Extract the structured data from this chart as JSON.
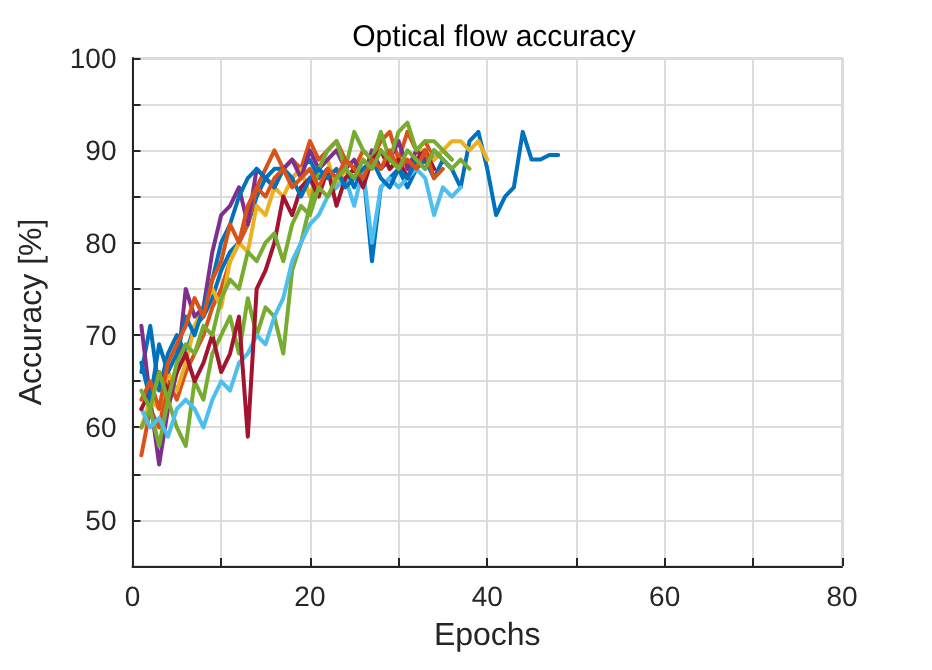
{
  "chart_data": {
    "type": "line",
    "title": "Optical flow accuracy",
    "xlabel": "Epochs",
    "ylabel": "Accuracy [%]",
    "xlim": [
      0,
      80
    ],
    "xticks": [
      0,
      {
        "value": 10,
        "label": null
      },
      20,
      {
        "value": 30,
        "label": null
      },
      40,
      {
        "value": 50,
        "label": null
      },
      60,
      {
        "value": 70,
        "label": null
      },
      80
    ],
    "ylim": [
      45,
      100
    ],
    "yticks": [
      {
        "value": 45,
        "label": null
      },
      50,
      {
        "value": 55,
        "label": null
      },
      60,
      {
        "value": 65,
        "label": null
      },
      70,
      {
        "value": 75,
        "label": null
      },
      80,
      {
        "value": 85,
        "label": null
      },
      90,
      {
        "value": 95,
        "label": null
      },
      100
    ],
    "grid": true,
    "marker": "none",
    "line_style": "solid",
    "series": [
      {
        "color": "#0072bd",
        "x": [
          1,
          2,
          3,
          4,
          5,
          6,
          7,
          8,
          9,
          10,
          11,
          12,
          13,
          14,
          15,
          16,
          17,
          18,
          19,
          20,
          21,
          22,
          23,
          24,
          25,
          26,
          27,
          28,
          29,
          30,
          31,
          32,
          33,
          34,
          35,
          36,
          37,
          38,
          39,
          40,
          41,
          42,
          43,
          44,
          45,
          46,
          47,
          48
        ],
        "values": [
          66,
          71,
          64,
          68,
          70,
          68,
          71,
          72,
          74,
          77,
          79,
          80,
          82,
          85,
          87,
          88,
          88,
          87,
          88,
          89,
          87,
          88,
          87,
          88,
          86,
          88,
          78,
          86,
          87,
          88,
          86,
          88,
          89,
          87,
          89,
          88,
          86,
          91,
          92,
          88,
          83,
          85,
          86,
          92,
          89,
          89,
          89.5,
          89.5
        ]
      },
      {
        "color": "#d95319",
        "x": [
          1,
          2,
          3,
          4,
          5,
          6,
          7,
          8,
          9,
          10,
          11,
          12,
          13,
          14,
          15,
          16,
          17,
          18,
          19,
          20,
          21,
          22,
          23,
          24,
          25,
          26,
          27,
          28,
          29,
          30,
          31,
          32,
          33,
          34,
          35,
          36
        ],
        "values": [
          57,
          62,
          60,
          65,
          63,
          66,
          68,
          70,
          73,
          75,
          78,
          80,
          82,
          86,
          88,
          90,
          88,
          89,
          88,
          91,
          89,
          90,
          91,
          89,
          88,
          90,
          89,
          91,
          92,
          89,
          92,
          90,
          91,
          89,
          90,
          89
        ]
      },
      {
        "color": "#edb120",
        "x": [
          1,
          2,
          3,
          4,
          5,
          6,
          7,
          8,
          9,
          10,
          11,
          12,
          13,
          14,
          15,
          16,
          17,
          18,
          19,
          20,
          21,
          22,
          23,
          24,
          25,
          26,
          27,
          28,
          29,
          30,
          31,
          32,
          33,
          34,
          35,
          36,
          37,
          38,
          39,
          40
        ],
        "values": [
          60,
          63,
          62,
          66,
          64,
          67,
          71,
          73,
          75,
          73,
          78,
          80,
          79,
          84,
          83,
          86,
          85,
          87,
          88,
          85,
          88,
          89,
          86,
          88,
          87,
          89,
          88,
          90,
          88,
          89,
          87,
          90,
          90,
          89,
          90,
          91,
          91,
          90,
          91,
          89
        ]
      },
      {
        "color": "#7e2f8e",
        "x": [
          1,
          2,
          3,
          4,
          5,
          6,
          7,
          8,
          9,
          10,
          11,
          12,
          13,
          14,
          15,
          16,
          17,
          18,
          19,
          20,
          21,
          22,
          23,
          24,
          25,
          26,
          27,
          28,
          29,
          30,
          31,
          32,
          33,
          34
        ],
        "values": [
          71,
          63,
          56,
          62,
          66,
          75,
          72,
          73,
          79,
          83,
          84,
          86,
          82,
          88,
          87,
          86,
          88,
          89,
          87,
          90,
          88,
          89,
          90,
          88,
          89,
          87,
          90,
          88,
          89,
          91,
          88,
          90,
          89,
          88
        ]
      },
      {
        "color": "#77ac30",
        "x": [
          1,
          2,
          3,
          4,
          5,
          6,
          7,
          8,
          9,
          10,
          11,
          12,
          13,
          14,
          15,
          16,
          17,
          18,
          19,
          20,
          21,
          22,
          23,
          24,
          25,
          26,
          27,
          28,
          29,
          30,
          31,
          32,
          33,
          34,
          35,
          36
        ],
        "values": [
          60,
          62,
          58,
          63,
          60,
          58,
          65,
          63,
          68,
          70,
          72,
          68,
          74,
          70,
          73,
          72,
          68,
          77,
          80,
          84,
          88,
          90,
          91,
          88,
          92,
          90,
          89,
          92,
          89,
          92,
          93,
          90,
          91,
          91,
          90,
          89
        ]
      },
      {
        "color": "#4dbeee",
        "x": [
          1,
          2,
          3,
          4,
          5,
          6,
          7,
          8,
          9,
          10,
          11,
          12,
          13,
          14,
          15,
          16,
          17,
          18,
          19,
          20,
          21,
          22,
          23,
          24,
          25,
          26,
          27,
          28,
          29,
          30,
          31,
          32,
          33,
          34,
          35,
          36,
          37
        ],
        "values": [
          62,
          60,
          61,
          59,
          62,
          63,
          62,
          60,
          63,
          65,
          64,
          67,
          68,
          70,
          69,
          72,
          74,
          78,
          80,
          82,
          83,
          85,
          86,
          87,
          84,
          88,
          80,
          86,
          87,
          86,
          87,
          88,
          87,
          83,
          86,
          85,
          86
        ]
      },
      {
        "color": "#a2142f",
        "x": [
          1,
          2,
          3,
          4,
          5,
          6,
          7,
          8,
          9,
          10,
          11,
          12,
          13,
          14,
          15,
          16,
          17,
          18,
          19,
          20,
          21,
          22,
          23,
          24,
          25,
          26,
          27,
          28,
          29,
          30,
          31,
          32,
          33,
          34
        ],
        "values": [
          62,
          64,
          66,
          64,
          66,
          68,
          65,
          67,
          70,
          66,
          68,
          72,
          59,
          75,
          77,
          80,
          85,
          83,
          86,
          87,
          85,
          88,
          84,
          87,
          88,
          86,
          89,
          90,
          88,
          89,
          87,
          89,
          90,
          88
        ]
      },
      {
        "color": "#0072bd",
        "x": [
          1,
          2,
          3,
          4,
          5,
          6,
          7,
          8,
          9,
          10,
          11,
          12,
          13,
          14,
          15,
          16,
          17,
          18,
          19,
          20,
          21,
          22,
          23,
          24,
          25,
          26,
          27,
          28,
          29,
          30,
          31,
          32,
          33,
          34,
          35,
          36
        ],
        "values": [
          67,
          63,
          69,
          66,
          68,
          72,
          70,
          73,
          76,
          80,
          82,
          85,
          87,
          88,
          87,
          86,
          88,
          87,
          85,
          87,
          88,
          87,
          88,
          86,
          87,
          88,
          89,
          87,
          86,
          88,
          87,
          89,
          88,
          90,
          89,
          88
        ]
      },
      {
        "color": "#d95319",
        "x": [
          1,
          2,
          3,
          4,
          5,
          6,
          7,
          8,
          9,
          10,
          11,
          12,
          13,
          14,
          15,
          16,
          17,
          18,
          19,
          20,
          21,
          22,
          23,
          24,
          25,
          26,
          27,
          28,
          29,
          30,
          31,
          32,
          33,
          34,
          35
        ],
        "values": [
          63,
          65,
          62,
          67,
          69,
          71,
          74,
          72,
          76,
          78,
          82,
          80,
          84,
          86,
          85,
          87,
          88,
          86,
          87,
          88,
          86,
          88,
          87,
          89,
          88,
          87,
          89,
          88,
          90,
          88,
          89,
          88,
          90,
          87,
          88
        ]
      },
      {
        "color": "#77ac30",
        "x": [
          1,
          2,
          3,
          4,
          5,
          6,
          7,
          8,
          9,
          10,
          11,
          12,
          13,
          14,
          15,
          16,
          17,
          18,
          19,
          20,
          21,
          22,
          23,
          24,
          25,
          26,
          27,
          28,
          29,
          30,
          31,
          32,
          33,
          34,
          35,
          36,
          37,
          38
        ],
        "values": [
          64,
          62,
          66,
          63,
          67,
          69,
          68,
          71,
          70,
          74,
          76,
          75,
          79,
          78,
          80,
          81,
          78,
          82,
          84,
          83,
          86,
          85,
          87,
          88,
          87,
          89,
          88,
          90,
          89,
          88,
          90,
          89,
          88,
          90,
          89,
          88,
          89,
          88
        ]
      }
    ]
  }
}
